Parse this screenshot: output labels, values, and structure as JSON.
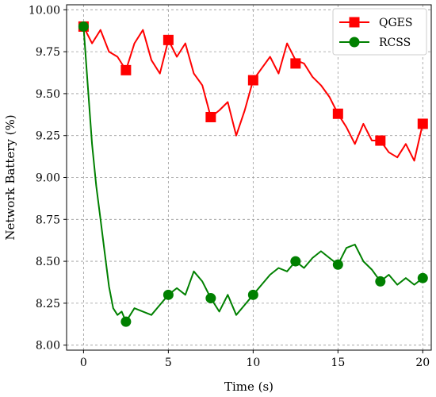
{
  "chart_data": {
    "type": "line",
    "title": "",
    "xlabel": "Time (s)",
    "ylabel": "Network Battery (%)",
    "xlim": [
      -1,
      20.5
    ],
    "ylim": [
      7.97,
      10.03
    ],
    "grid": true,
    "legend_position": "top-right",
    "x_ticks": [
      0,
      5,
      10,
      15,
      20
    ],
    "x_tick_labels": [
      "0",
      "5",
      "10",
      "15",
      "20"
    ],
    "y_ticks": [
      8.0,
      8.25,
      8.5,
      8.75,
      9.0,
      9.25,
      9.5,
      9.75,
      10.0
    ],
    "y_tick_labels": [
      "8.00",
      "8.25",
      "8.50",
      "8.75",
      "9.00",
      "9.25",
      "9.50",
      "9.75",
      "10.00"
    ],
    "series": [
      {
        "name": "QGES",
        "color": "#ff0000",
        "marker": "square",
        "x": [
          0,
          0.5,
          1,
          1.5,
          2,
          2.5,
          3,
          3.5,
          4,
          4.5,
          5,
          5.5,
          6,
          6.5,
          7,
          7.5,
          8,
          8.5,
          9,
          9.5,
          10,
          10.5,
          11,
          11.5,
          12,
          12.5,
          13,
          13.5,
          14,
          14.5,
          15,
          15.5,
          16,
          16.5,
          17,
          17.5,
          18,
          18.5,
          19,
          19.5,
          20
        ],
        "values": [
          9.9,
          9.8,
          9.88,
          9.75,
          9.72,
          9.64,
          9.8,
          9.88,
          9.7,
          9.62,
          9.82,
          9.72,
          9.8,
          9.62,
          9.55,
          9.36,
          9.4,
          9.45,
          9.25,
          9.4,
          9.58,
          9.65,
          9.72,
          9.62,
          9.8,
          9.7,
          9.68,
          9.6,
          9.55,
          9.48,
          9.38,
          9.3,
          9.2,
          9.32,
          9.22,
          9.22,
          9.15,
          9.12,
          9.2,
          9.1,
          9.32
        ],
        "marker_x": [
          0,
          2.5,
          5,
          7.5,
          10,
          12.5,
          15,
          17.5,
          20
        ],
        "marker_values": [
          9.9,
          9.64,
          9.82,
          9.36,
          9.58,
          9.68,
          9.38,
          9.22,
          9.32
        ]
      },
      {
        "name": "RCSS",
        "color": "#008000",
        "marker": "circle",
        "x": [
          0,
          0.25,
          0.5,
          0.75,
          1,
          1.25,
          1.5,
          1.75,
          2,
          2.25,
          2.5,
          3,
          3.5,
          4,
          4.5,
          5,
          5.5,
          6,
          6.5,
          7,
          7.5,
          8,
          8.5,
          9,
          9.5,
          10,
          10.5,
          11,
          11.5,
          12,
          12.5,
          13,
          13.5,
          14,
          14.5,
          15,
          15.5,
          16,
          16.5,
          17,
          17.5,
          18,
          18.5,
          19,
          19.5,
          20
        ],
        "values": [
          9.9,
          9.55,
          9.2,
          8.95,
          8.75,
          8.55,
          8.35,
          8.22,
          8.18,
          8.2,
          8.14,
          8.22,
          8.2,
          8.18,
          8.24,
          8.3,
          8.34,
          8.3,
          8.44,
          8.38,
          8.28,
          8.2,
          8.3,
          8.18,
          8.24,
          8.3,
          8.36,
          8.42,
          8.46,
          8.44,
          8.5,
          8.46,
          8.52,
          8.56,
          8.52,
          8.48,
          8.58,
          8.6,
          8.5,
          8.45,
          8.38,
          8.42,
          8.36,
          8.4,
          8.36,
          8.4
        ],
        "marker_x": [
          0,
          2.5,
          5,
          7.5,
          10,
          12.5,
          15,
          17.5,
          20
        ],
        "marker_values": [
          9.9,
          8.14,
          8.3,
          8.28,
          8.3,
          8.5,
          8.48,
          8.38,
          8.4
        ]
      }
    ]
  }
}
